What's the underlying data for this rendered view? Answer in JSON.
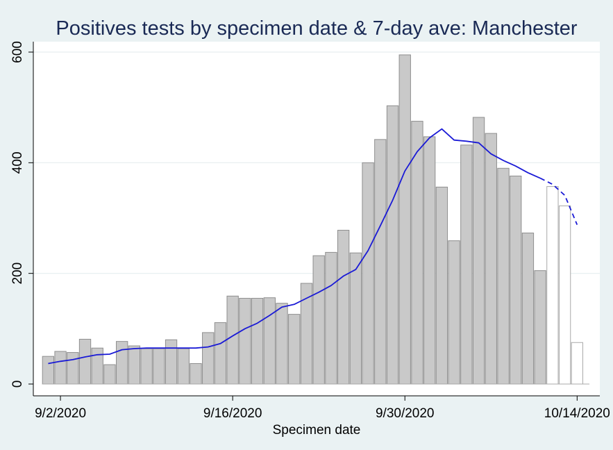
{
  "chart_data": {
    "type": "bar",
    "title": "Positives tests by specimen date & 7-day ave: Manchester",
    "xlabel": "Specimen date",
    "ylabel": "",
    "ylim": [
      0,
      600
    ],
    "yticks": [
      0,
      200,
      400,
      600
    ],
    "xtick_labels": [
      "9/2/2020",
      "9/16/2020",
      "9/30/2020",
      "10/14/2020"
    ],
    "x_start": "2020-09-01",
    "grid": true,
    "bar_fill_color": "#c9c9c9",
    "bar_stroke_color": "#8e8e8e",
    "incomplete_bar_fill_color": "#ffffff",
    "incomplete_bar_stroke_color": "#a8a8a8",
    "line_color": "#1a1ad6",
    "series": [
      {
        "name": "Positive tests",
        "values": [
          50,
          59,
          57,
          81,
          65,
          35,
          77,
          69,
          64,
          64,
          80,
          64,
          37,
          93,
          111,
          159,
          155,
          155,
          156,
          146,
          126,
          182,
          232,
          238,
          278,
          237,
          400,
          442,
          503,
          595,
          475,
          447,
          356,
          259,
          432,
          482,
          453,
          390,
          376,
          273,
          205,
          357,
          322,
          75
        ]
      },
      {
        "name": "7-day average",
        "values": [
          37,
          41,
          44,
          49,
          53,
          54,
          62,
          64,
          65,
          65,
          65,
          65,
          65,
          67,
          73,
          87,
          100,
          110,
          124,
          139,
          144,
          155,
          166,
          178,
          195,
          207,
          241,
          286,
          332,
          385,
          420,
          445,
          461,
          441,
          439,
          436,
          416,
          404,
          394,
          382,
          372,
          361,
          341,
          288
        ]
      }
    ],
    "incomplete_from_index": 41,
    "dashed_line_from_index": 40
  }
}
